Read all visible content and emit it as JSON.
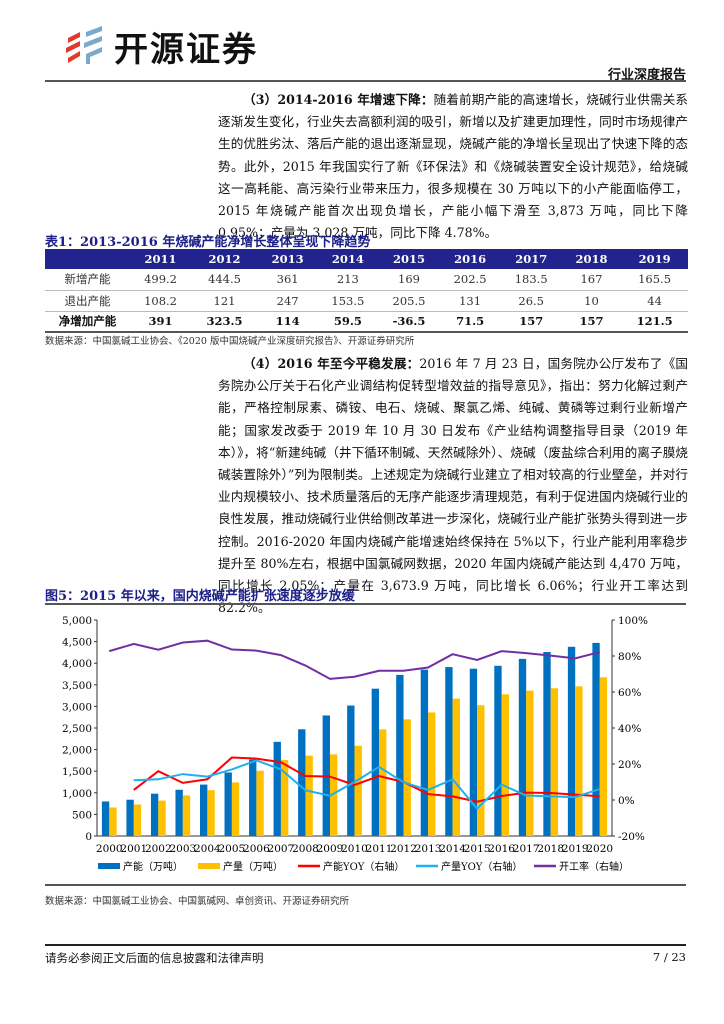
{
  "header": {
    "brand": "开源证券",
    "report_type": "行业深度报告"
  },
  "section3": {
    "heading": "（3）2014-2016 年增速下降：",
    "text": "随着前期产能的高速增长，烧碱行业供需关系逐渐发生变化，行业失去高额利润的吸引，新增以及扩建更加理性，同时市场规律产生的优胜劣汰、落后产能的退出逐渐显现，烧碱产能的净增长呈现出了快速下降的态势。此外，2015 年我国实行了新《环保法》和《烧碱装置安全设计规范》，给烧碱这一高耗能、高污染行业带来压力，很多规模在 30 万吨以下的小产能面临停工，2015 年烧碱产能首次出现负增长，产能小幅下滑至 3,873 万吨，同比下降 0.95%；产量为 3,028 万吨，同比下降 4.78%。"
  },
  "table1": {
    "title": "表1：2013-2016 年烧碱产能净增长整体呈现下降趋势",
    "columns": [
      "",
      "2011",
      "2012",
      "2013",
      "2014",
      "2015",
      "2016",
      "2017",
      "2018",
      "2019"
    ],
    "rows": [
      [
        "新增产能",
        "499.2",
        "444.5",
        "361",
        "213",
        "169",
        "202.5",
        "183.5",
        "167",
        "165.5"
      ],
      [
        "退出产能",
        "108.2",
        "121",
        "247",
        "153.5",
        "205.5",
        "131",
        "26.5",
        "10",
        "44"
      ],
      [
        "净增加产能",
        "391",
        "323.5",
        "114",
        "59.5",
        "-36.5",
        "71.5",
        "157",
        "157",
        "121.5"
      ]
    ],
    "source": "数据来源：中国氯碱工业协会、《2020 版中国烧碱产业深度研究报告》、开源证券研究所"
  },
  "section4": {
    "heading": "（4）2016 年至今平稳发展：",
    "text": "2016 年 7 月 23 日，国务院办公厅发布了《国务院办公厅关于石化产业调结构促转型增效益的指导意见》，指出：努力化解过剩产能，严格控制尿素、磷铵、电石、烧碱、聚氯乙烯、纯碱、黄磷等过剩行业新增产能；国家发改委于 2019 年 10 月 30 日发布《产业结构调整指导目录（2019 年本）》，将“新建纯碱（井下循环制碱、天然碱除外）、烧碱（废盐综合利用的离子膜烧碱装置除外）”列为限制类。上述规定为烧碱行业建立了相对较高的行业壁垒，并对行业内规模较小、技术质量落后的无序产能逐步清理规范，有利于促进国内烧碱行业的良性发展，推动烧碱行业供给侧改革进一步深化，烧碱行业产能扩张势头得到进一步控制。2016-2020 年国内烧碱产能增速始终保持在 5%以下，行业产能利用率稳步提升至 80%左右，根据中国氯碱网数据，2020 年国内烧碱产能达到 4,470 万吨，同比增长 2.05%；产量在 3,673.9 万吨，同比增长 6.06%；行业开工率达到 82.2%。"
  },
  "figure5": {
    "title": "图5：2015 年以来，国内烧碱产能扩张速度逐步放缓",
    "source": "数据来源：中国氯碱工业协会、中国氯碱网、卓创资讯、开源证券研究所"
  },
  "chart_data": {
    "type": "bar+line",
    "categories": [
      "2000",
      "2001",
      "2002",
      "2003",
      "2004",
      "2005",
      "2006",
      "2007",
      "2008",
      "2009",
      "2010",
      "2011",
      "2012",
      "2013",
      "2014",
      "2015",
      "2016",
      "2017",
      "2018",
      "2019",
      "2020"
    ],
    "y_left": {
      "range": [
        0,
        5000
      ],
      "ticks": [
        "0",
        "500",
        "1,000",
        "1,500",
        "2,000",
        "2,500",
        "3,000",
        "3,500",
        "4,000",
        "4,500",
        "5,000"
      ]
    },
    "y_right": {
      "range": [
        -20,
        100
      ],
      "ticks": [
        "-20%",
        "0%",
        "20%",
        "40%",
        "60%",
        "80%",
        "100%"
      ]
    },
    "grid": false,
    "legend": "bottom",
    "series": [
      {
        "name": "产能（万吨）",
        "kind": "bar",
        "axis": "left",
        "color": "#0070c0",
        "values": [
          800,
          840,
          980,
          1070,
          1190,
          1470,
          1770,
          2180,
          2470,
          2790,
          3020,
          3410,
          3730,
          3850,
          3910,
          3873,
          3940,
          4100,
          4260,
          4380,
          4470
        ]
      },
      {
        "name": "产量（万吨）",
        "kind": "bar",
        "axis": "left",
        "color": "#ffc000",
        "values": [
          660,
          730,
          820,
          940,
          1060,
          1240,
          1510,
          1760,
          1860,
          1890,
          2090,
          2470,
          2700,
          2860,
          3180,
          3028,
          3280,
          3365,
          3420,
          3465,
          3674
        ]
      },
      {
        "name": "产能YOY（右轴）",
        "kind": "line",
        "axis": "right",
        "color": "#ff0000",
        "values": [
          null,
          5.6,
          16,
          9.5,
          11.5,
          23.6,
          23,
          21,
          13.3,
          13,
          8.4,
          13.3,
          10,
          3.3,
          2,
          -0.95,
          2.2,
          4.1,
          3.9,
          3,
          2.05
        ]
      },
      {
        "name": "产量YOY（右轴）",
        "kind": "line",
        "axis": "right",
        "color": "#1fb0f0",
        "values": [
          null,
          11,
          11.5,
          14.4,
          13,
          17,
          22,
          17,
          5.4,
          2.4,
          10,
          18.4,
          9.8,
          5.6,
          11.5,
          -4.78,
          8.5,
          2.5,
          2,
          1.6,
          6.06
        ]
      },
      {
        "name": "开工率（右轴）",
        "kind": "line",
        "axis": "right",
        "color": "#7030a0",
        "values": [
          82.7,
          86.7,
          83.5,
          87.5,
          88.5,
          83.6,
          83,
          80.5,
          74.7,
          67.3,
          68.5,
          71.8,
          71.8,
          73.6,
          81,
          77.8,
          82.7,
          81.6,
          80.2,
          78.7,
          82.2
        ]
      }
    ]
  },
  "footer": {
    "disclaimer": "请务必参阅正文后面的信息披露和法律声明",
    "page": "7 / 23"
  }
}
